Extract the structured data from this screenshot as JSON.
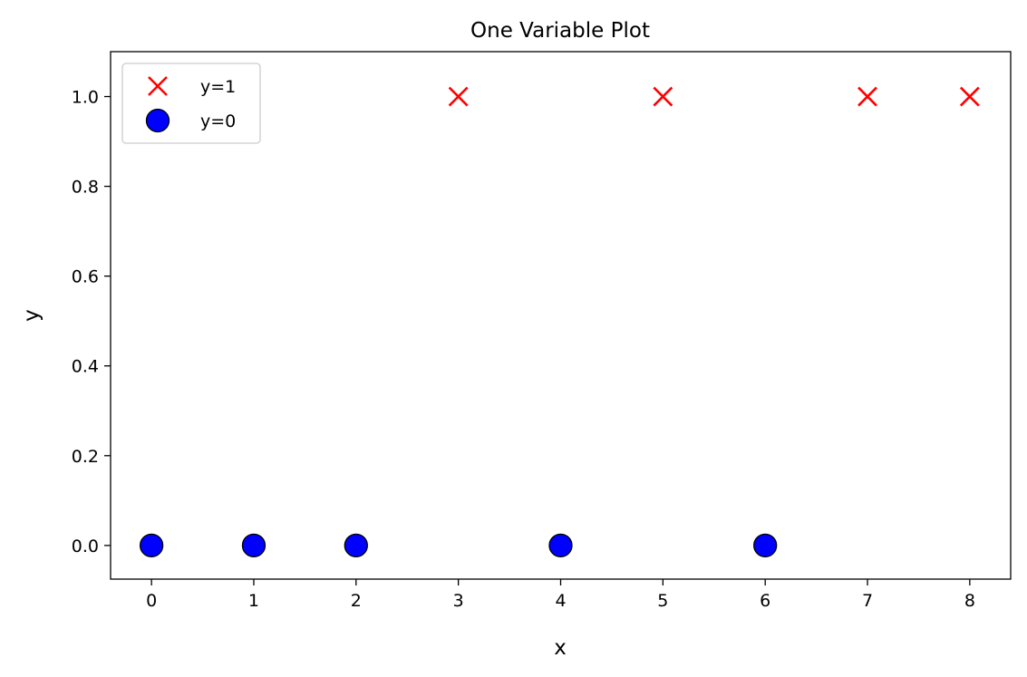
{
  "chart_data": {
    "type": "scatter",
    "title": "One Variable Plot",
    "xlabel": "x",
    "ylabel": "y",
    "xlim": [
      -0.4,
      8.4
    ],
    "ylim": [
      -0.075,
      1.1
    ],
    "xticks": [
      "0",
      "1",
      "2",
      "3",
      "4",
      "5",
      "6",
      "7",
      "8"
    ],
    "yticks": [
      "0.0",
      "0.2",
      "0.4",
      "0.6",
      "0.8",
      "1.0"
    ],
    "grid": false,
    "legend_position": "top-left",
    "series": [
      {
        "name": "y=1",
        "marker": "x",
        "color": "#ff0000",
        "points": [
          [
            3,
            1
          ],
          [
            5,
            1
          ],
          [
            7,
            1
          ],
          [
            8,
            1
          ]
        ]
      },
      {
        "name": "y=0",
        "marker": "circle",
        "color": "#0000ff",
        "edge_color": "#000000",
        "points": [
          [
            0,
            0
          ],
          [
            1,
            0
          ],
          [
            2,
            0
          ],
          [
            4,
            0
          ],
          [
            6,
            0
          ]
        ]
      }
    ]
  }
}
